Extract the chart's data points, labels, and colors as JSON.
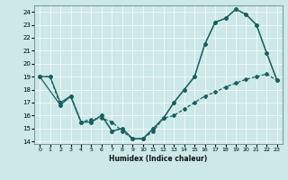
{
  "xlabel": "Humidex (Indice chaleur)",
  "background_color": "#cce8e8",
  "grid_color": "#b0d4d4",
  "line_color": "#1a6060",
  "xlim": [
    -0.5,
    23.5
  ],
  "ylim": [
    13.8,
    24.5
  ],
  "yticks": [
    14,
    15,
    16,
    17,
    18,
    19,
    20,
    21,
    22,
    23,
    24
  ],
  "xticks": [
    0,
    1,
    2,
    3,
    4,
    5,
    6,
    7,
    8,
    9,
    10,
    11,
    12,
    13,
    14,
    15,
    16,
    17,
    18,
    19,
    20,
    21,
    22,
    23
  ],
  "series1_x": [
    0,
    1,
    2,
    3,
    4,
    5,
    6,
    7,
    8,
    9,
    10,
    11,
    12,
    13,
    14,
    15,
    16,
    17,
    18,
    19,
    20,
    21,
    22,
    23
  ],
  "series1_y": [
    19.0,
    19.0,
    17.0,
    17.5,
    15.5,
    15.5,
    16.0,
    14.8,
    15.0,
    14.2,
    14.2,
    15.0,
    15.8,
    17.0,
    18.0,
    19.0,
    21.5,
    23.2,
    23.5,
    24.2,
    23.8,
    23.0,
    20.8,
    18.7
  ],
  "series2_x": [
    0,
    1,
    2,
    3,
    4,
    5,
    6,
    7,
    8,
    9,
    10,
    11,
    12,
    13,
    14,
    15,
    16,
    17,
    18,
    19,
    20,
    21,
    22,
    23
  ],
  "series2_y": [
    19.0,
    19.0,
    16.8,
    17.5,
    15.5,
    15.7,
    15.8,
    15.5,
    14.8,
    14.2,
    14.2,
    14.8,
    15.8,
    16.0,
    16.5,
    17.0,
    17.5,
    17.8,
    18.2,
    18.5,
    18.8,
    19.0,
    19.2,
    18.7
  ],
  "series3_x": [
    0,
    2,
    3,
    4,
    5,
    6,
    7,
    8,
    9,
    10,
    11,
    12,
    13,
    14,
    15,
    16,
    17,
    18,
    19,
    20,
    21,
    22,
    23
  ],
  "series3_y": [
    19.0,
    16.8,
    17.5,
    15.5,
    15.5,
    16.0,
    14.8,
    15.0,
    14.2,
    14.2,
    15.0,
    15.8,
    17.0,
    18.0,
    19.0,
    21.5,
    23.2,
    23.5,
    24.2,
    23.8,
    23.0,
    20.8,
    18.7
  ]
}
